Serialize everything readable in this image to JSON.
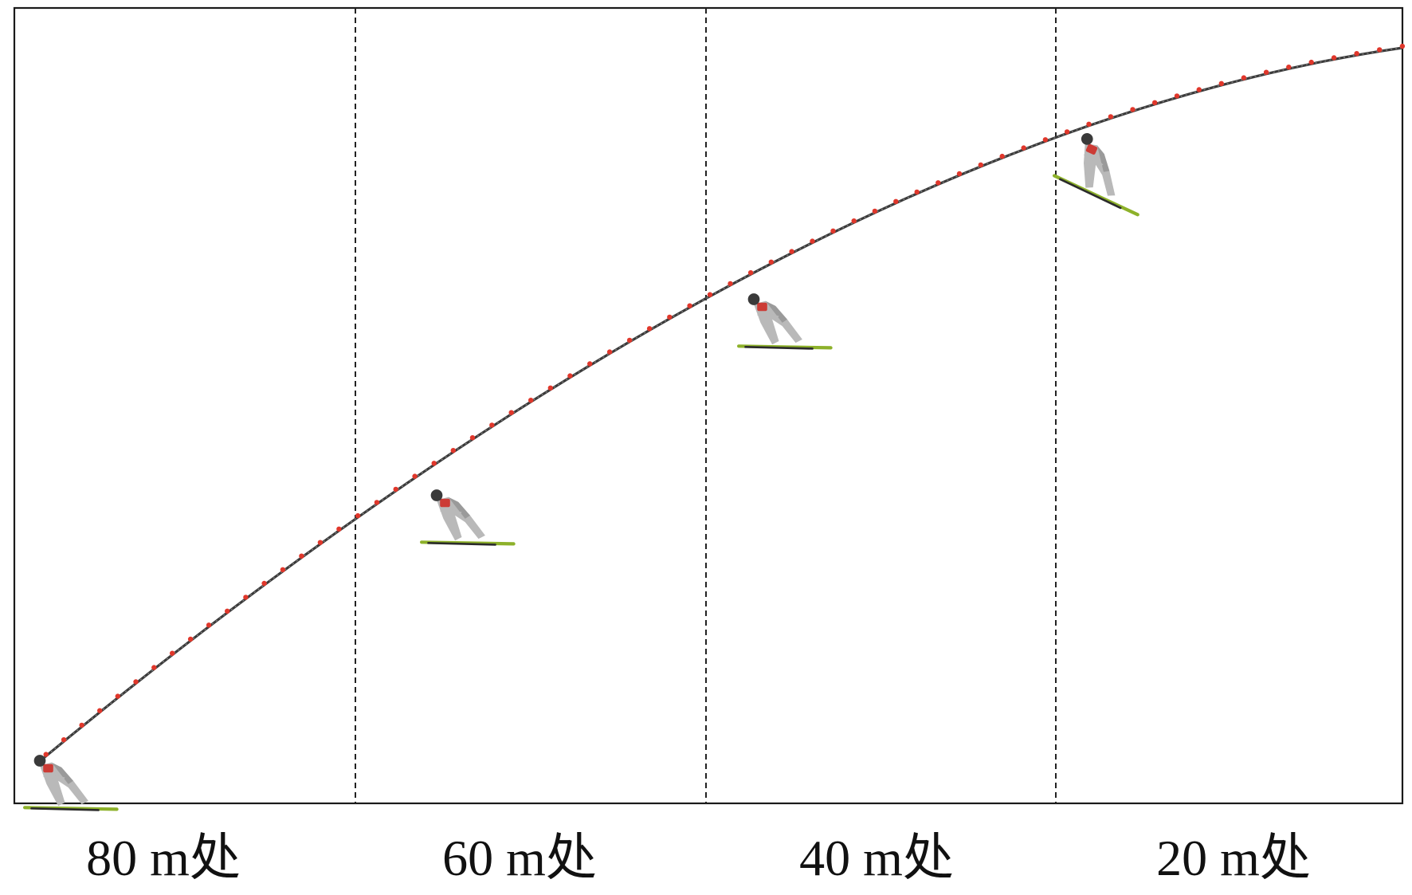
{
  "labels": {
    "pos_80": "80 m处",
    "pos_60": "60 m处",
    "pos_40": "40 m处",
    "pos_20": "20 m处"
  },
  "colors": {
    "trajectory": "#3a3a3a",
    "sample_points": "#e0372b",
    "skis": "#8db12a",
    "frame": "#1a1a1a"
  },
  "icons": {
    "jumper": "ski-jumper-icon"
  }
}
